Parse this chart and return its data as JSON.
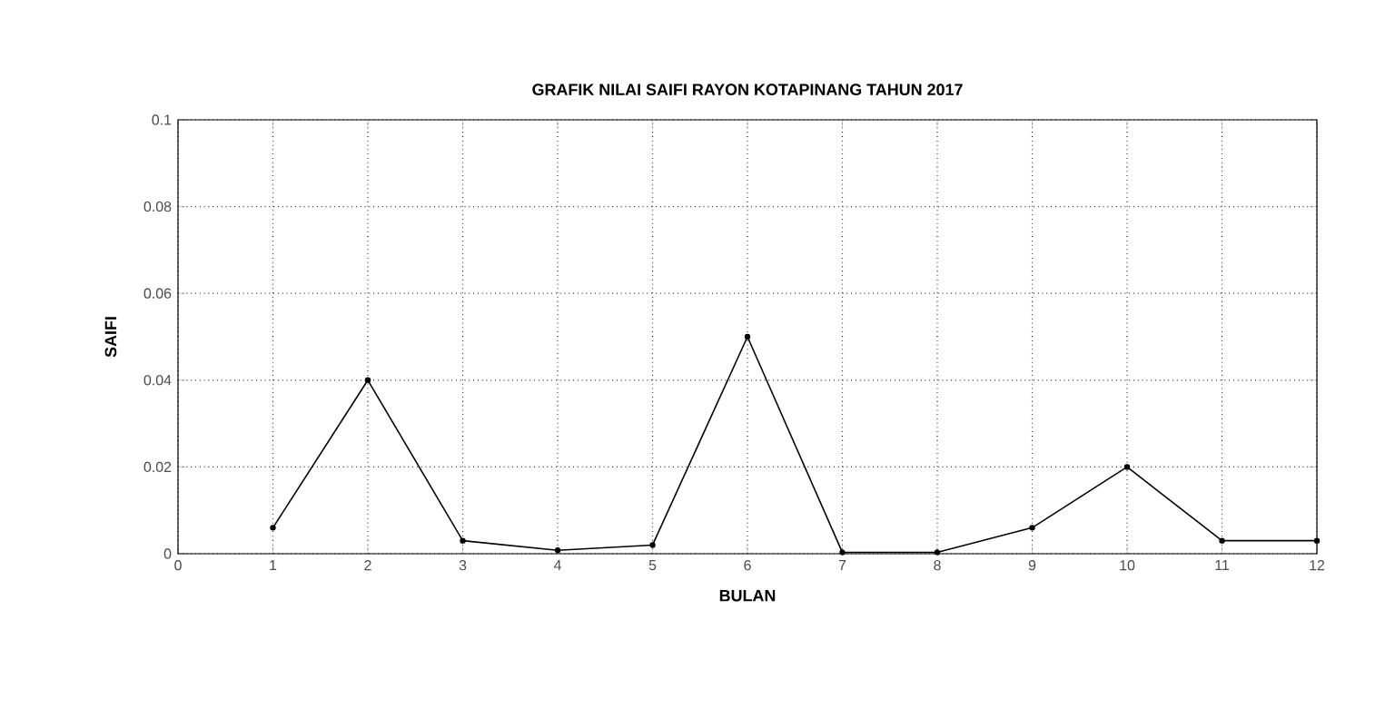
{
  "chart_data": {
    "type": "line",
    "title": "GRAFIK NILAI SAIFI RAYON KOTAPINANG TAHUN 2017",
    "xlabel": "BULAN",
    "ylabel": "SAIFI",
    "x": [
      1,
      2,
      3,
      4,
      5,
      6,
      7,
      8,
      9,
      10,
      11,
      12
    ],
    "series": [
      {
        "color": "#000000",
        "values": [
          0.006,
          0.04,
          0.003,
          0.0008,
          0.002,
          0.05,
          0.0003,
          0.0003,
          0.006,
          0.02,
          0.003,
          0.003
        ]
      }
    ],
    "xlim": [
      0,
      12
    ],
    "xticks": [
      0,
      1,
      2,
      3,
      4,
      5,
      6,
      7,
      8,
      9,
      10,
      11,
      12
    ],
    "ylim": [
      0,
      0.1
    ],
    "yticks": [
      0,
      0.02,
      0.04,
      0.06,
      0.08,
      0.1
    ],
    "grid": true,
    "marker": "circle",
    "line_style": "solid"
  }
}
